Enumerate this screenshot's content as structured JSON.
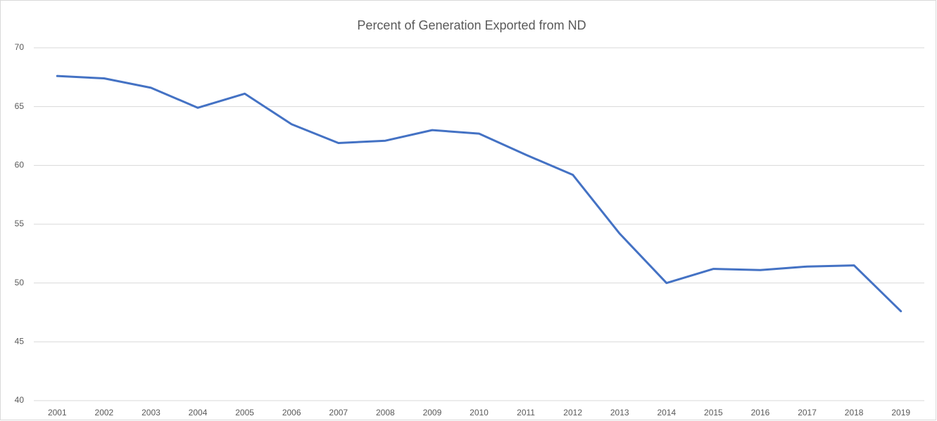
{
  "chart_data": {
    "type": "line",
    "title": "Percent of Generation Exported from ND",
    "categories": [
      "2001",
      "2002",
      "2003",
      "2004",
      "2005",
      "2006",
      "2007",
      "2008",
      "2009",
      "2010",
      "2011",
      "2012",
      "2013",
      "2014",
      "2015",
      "2016",
      "2017",
      "2018",
      "2019"
    ],
    "series": [
      {
        "color": "#4472c4",
        "values": [
          67.6,
          67.4,
          66.6,
          64.9,
          66.1,
          63.5,
          61.9,
          62.1,
          63.0,
          62.7,
          60.9,
          59.2,
          54.2,
          50.0,
          51.2,
          51.1,
          51.4,
          51.5,
          47.6
        ]
      }
    ],
    "ylim": [
      40,
      70
    ],
    "yticks": [
      40,
      45,
      50,
      55,
      60,
      65,
      70
    ],
    "grid": true
  }
}
